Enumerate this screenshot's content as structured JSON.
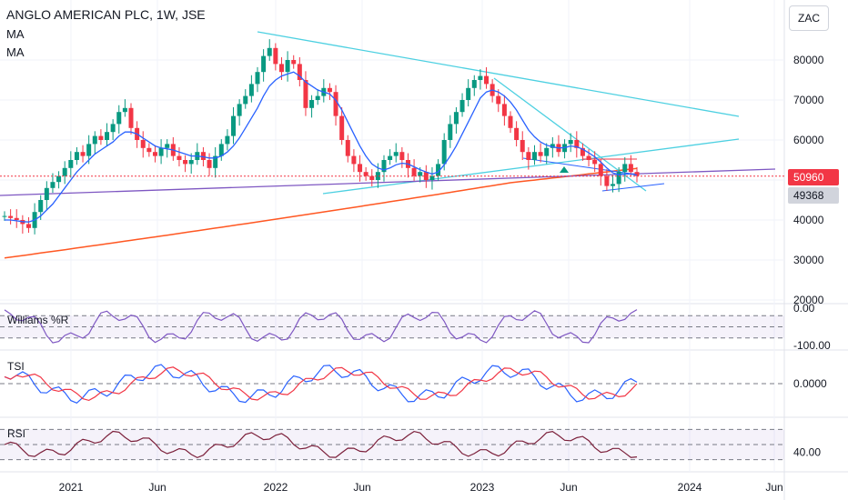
{
  "header": {
    "title": "ANGLO AMERICAN PLC, 1W, JSE",
    "indicator1": "MA",
    "indicator2": "MA",
    "currency": "ZAC"
  },
  "price_tags": {
    "last": "50960",
    "ma": "49368",
    "last_color": "#f23645",
    "ma_color": "#d1d4dc"
  },
  "colors": {
    "up": "#089981",
    "down": "#f23645",
    "ma_fast": "#2962ff",
    "ma_slow": "#ff5722",
    "trend_cyan": "#4dd0e1",
    "trend_purple": "#7e57c2",
    "wr": "#7e57c2",
    "tsi_main": "#2962ff",
    "tsi_signal": "#f23645",
    "rsi": "#7b1f3a"
  },
  "chart_data": [
    {
      "type": "candlestick",
      "title": "ANGLO AMERICAN PLC, 1W, JSE",
      "x_ticks": [
        "2021",
        "Jun",
        "2022",
        "Jun",
        "2023",
        "Jun",
        "2024",
        "Jun"
      ],
      "y_ticks": [
        "80000",
        "70000",
        "60000",
        "50000",
        "40000",
        "30000",
        "20000"
      ],
      "ylim": [
        20000,
        86000
      ],
      "close_series": [
        41000,
        40500,
        40000,
        39000,
        38000,
        42000,
        45000,
        48000,
        49500,
        51000,
        53000,
        55000,
        57000,
        56000,
        59000,
        61000,
        60000,
        62000,
        64000,
        67000,
        68000,
        63000,
        60000,
        58000,
        57000,
        56000,
        58000,
        59000,
        56000,
        55000,
        54000,
        55000,
        57000,
        55000,
        53000,
        56000,
        59000,
        61000,
        66000,
        69000,
        71000,
        74000,
        77000,
        81000,
        83000,
        79000,
        77000,
        80000,
        79000,
        75000,
        68000,
        70000,
        71000,
        73000,
        72000,
        66000,
        60000,
        56000,
        54000,
        52000,
        51000,
        50000,
        52000,
        55000,
        56000,
        57000,
        55000,
        53000,
        51000,
        52000,
        50000,
        51000,
        54000,
        60000,
        64000,
        67000,
        70000,
        73000,
        75000,
        76000,
        74000,
        71000,
        69000,
        66000,
        63000,
        60000,
        57000,
        55000,
        57000,
        56000,
        58000,
        59000,
        57000,
        59000,
        60000,
        58000,
        56000,
        55000,
        54000,
        51000,
        48500,
        49000,
        52000,
        54000,
        52000,
        51000
      ],
      "ma_fast": [
        40000,
        40000,
        39800,
        39600,
        39500,
        40000,
        41000,
        42500,
        44000,
        46000,
        48000,
        50000,
        52000,
        53500,
        55000,
        56500,
        57500,
        58500,
        59500,
        61000,
        62000,
        62000,
        61500,
        60500,
        59500,
        58500,
        58000,
        57800,
        57500,
        57000,
        56500,
        56000,
        56000,
        55800,
        55500,
        55500,
        56000,
        57000,
        58500,
        60500,
        63000,
        65500,
        68000,
        71000,
        73500,
        75000,
        76000,
        76500,
        77000,
        76000,
        74500,
        73500,
        72500,
        72000,
        71500,
        70000,
        67500,
        64500,
        61500,
        58500,
        56000,
        54000,
        53000,
        52500,
        53000,
        53800,
        54200,
        54000,
        53300,
        52600,
        52000,
        51500,
        52000,
        53800,
        56000,
        58500,
        61500,
        64500,
        67500,
        70500,
        72000,
        72500,
        72000,
        71000,
        69500,
        67500,
        65000,
        62500,
        60800,
        59500,
        58700,
        58300,
        58000,
        58100,
        58500,
        58300,
        57700,
        56800,
        55800,
        54500,
        53000,
        51800,
        51300,
        51500,
        51500,
        51200
      ],
      "ma_slow_range": [
        30500,
        54500
      ],
      "trendlines": [
        "upper-resistance",
        "lower-support",
        "inner-wedge",
        "purple-long-term"
      ],
      "last_price": 50960,
      "ma_value": 49368
    },
    {
      "type": "line",
      "title": "Williams %R",
      "y_ticks": [
        "0.00",
        "-100.00"
      ],
      "ylim": [
        -100,
        0
      ],
      "levels": [
        -20,
        -50,
        -80
      ]
    },
    {
      "type": "line",
      "title": "TSI",
      "y_ticks": [
        "0.0000"
      ],
      "ylim": [
        -40,
        40
      ],
      "levels": [
        0
      ],
      "series": [
        {
          "name": "TSI"
        },
        {
          "name": "Signal"
        }
      ]
    },
    {
      "type": "line",
      "title": "RSI",
      "y_ticks": [
        "40.00"
      ],
      "ylim": [
        20,
        80
      ],
      "levels": [
        30,
        50,
        70
      ]
    }
  ]
}
